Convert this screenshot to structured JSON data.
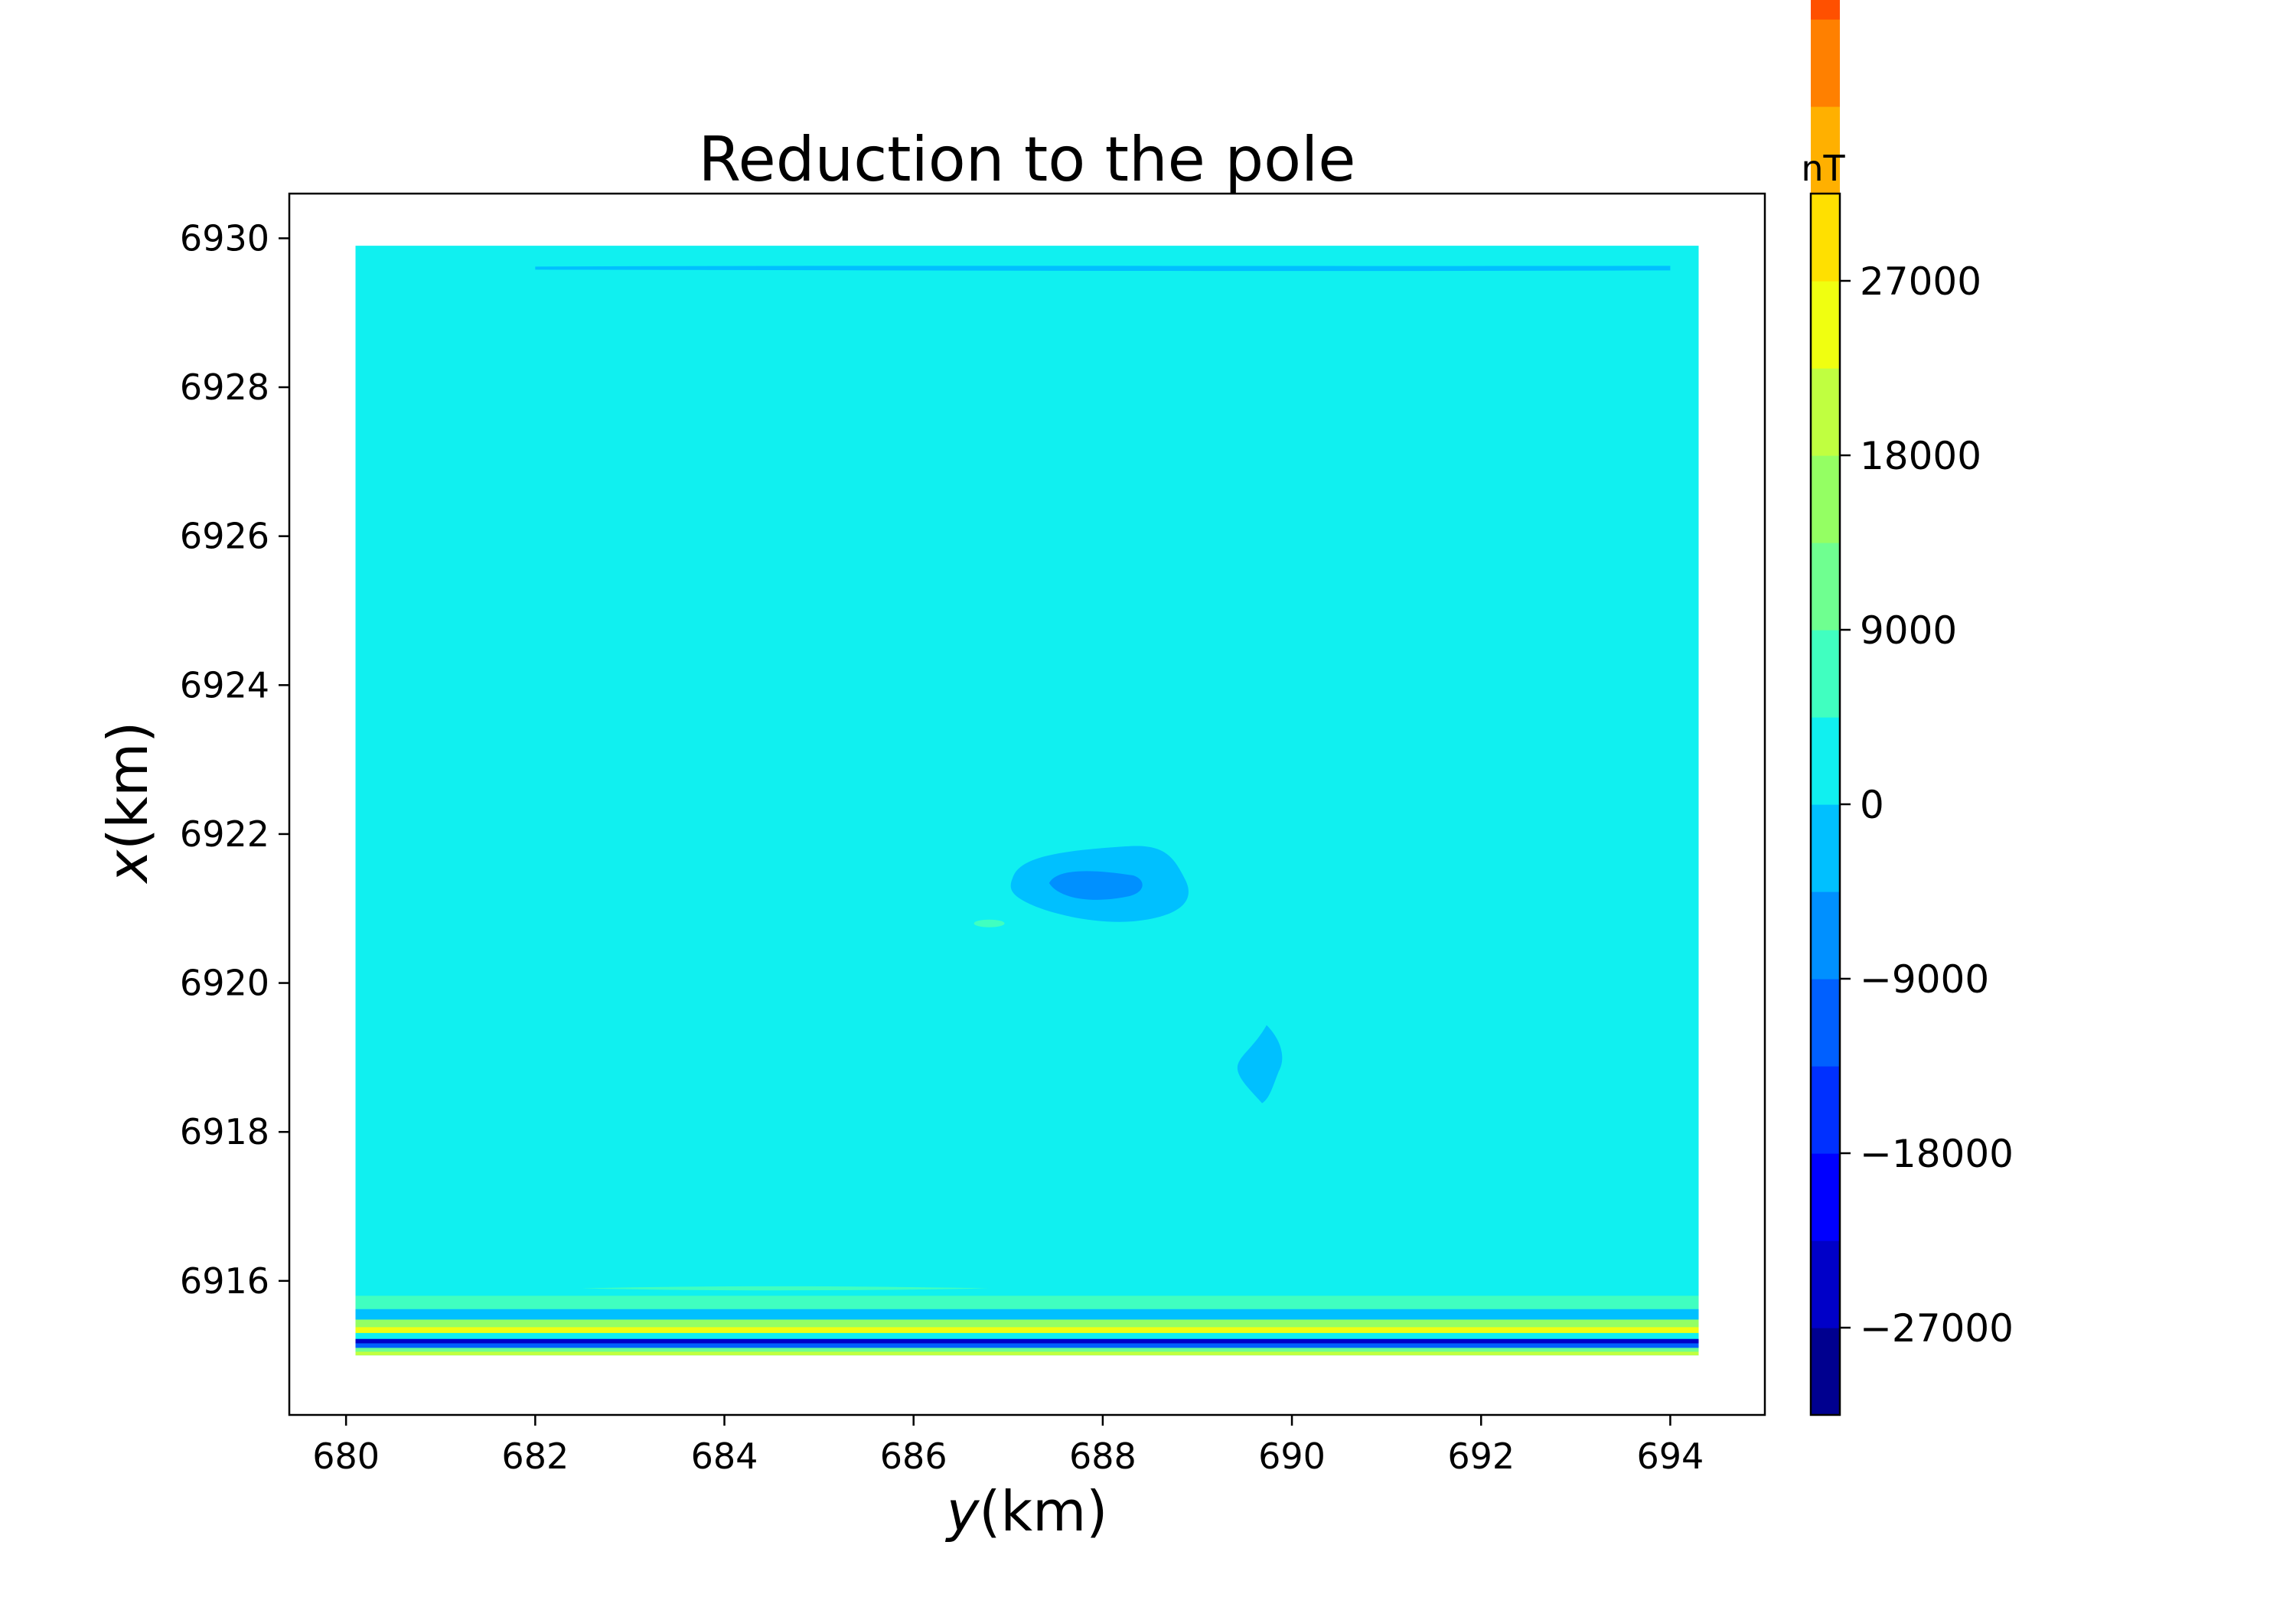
{
  "chart_data": {
    "type": "heatmap",
    "subtype": "filled-contour",
    "title": "Reduction to the pole",
    "xlabel": {
      "symbol": "y",
      "unit": "(km)"
    },
    "ylabel": {
      "symbol": "x",
      "unit": "(km)"
    },
    "xlim": [
      679.4,
      695.0
    ],
    "ylim": [
      6914.2,
      6930.6
    ],
    "x_ticks": [
      680,
      682,
      684,
      686,
      688,
      690,
      692,
      694
    ],
    "y_ticks": [
      6916,
      6918,
      6920,
      6922,
      6924,
      6926,
      6928,
      6930
    ],
    "data_extent": {
      "y_min": 680.1,
      "y_max": 694.3,
      "x_min": 6915.0,
      "x_max": 6929.9
    },
    "background_level": "0 to 4500 nT",
    "colorbar": {
      "unit": "nT",
      "range": [
        -31500,
        31500
      ],
      "ticks": [
        27000,
        18000,
        9000,
        0,
        -9000,
        -18000,
        -27000
      ],
      "tick_labels": [
        "27000",
        "18000",
        "9000",
        "0",
        "−9000",
        "−18000",
        "−27000"
      ],
      "level_step": 4500,
      "colors_bottom_to_top": [
        "#00008f",
        "#0000c8",
        "#0000ff",
        "#0030ff",
        "#0060ff",
        "#0090ff",
        "#00c0ff",
        "#10f0f0",
        "#40ffc0",
        "#6fff90",
        "#94ff63",
        "#c0ff40",
        "#f0ff10",
        "#ffe000",
        "#ffb000",
        "#ff8000",
        "#ff5000",
        "#ff2000",
        "#e00000",
        "#9c0000"
      ]
    },
    "features": [
      {
        "kind": "anomaly",
        "y_center": 688.0,
        "x_center": 6921.3,
        "value": "-4500 to 0 nT",
        "inner_core": "-9000 to -4500 nT"
      },
      {
        "kind": "anomaly",
        "y_center": 689.7,
        "x_center": 6918.9,
        "value": "-4500 to 0 nT"
      },
      {
        "kind": "small positive patch",
        "y_center": 686.8,
        "x_center": 6920.8,
        "value": "4500 to 9000 nT"
      },
      {
        "kind": "edge banding",
        "location": "southern boundary",
        "x_range": [
          6915.0,
          6915.8
        ],
        "value_range": "-31500 to 31500 nT"
      },
      {
        "kind": "edge band",
        "location": "northern boundary",
        "x": 6929.6,
        "value": "-4500 to 0 nT"
      }
    ]
  }
}
